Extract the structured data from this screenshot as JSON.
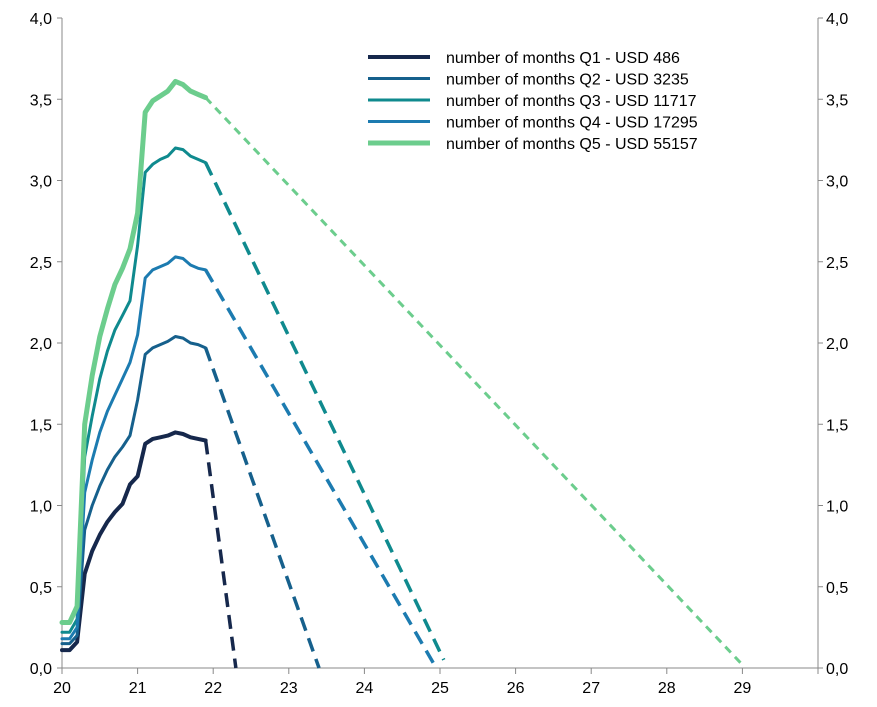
{
  "chart_data": {
    "type": "line",
    "title": "",
    "xlabel": "",
    "ylabel": "",
    "xlim": [
      20,
      30
    ],
    "ylim": [
      0,
      4
    ],
    "x_ticks": [
      "20",
      "21",
      "22",
      "23",
      "24",
      "25",
      "26",
      "27",
      "28",
      "29"
    ],
    "y_ticks": [
      "0,0",
      "0,5",
      "1,0",
      "1,5",
      "2,0",
      "2,5",
      "3,0",
      "3,5",
      "4,0"
    ],
    "secondary_y_ticks": [
      "0,0",
      "0,5",
      "1,0",
      "1,5",
      "2,0",
      "2,5",
      "3,0",
      "3,5",
      "4,0"
    ],
    "grid": false,
    "legend_position": "top-right",
    "x": [
      20.0,
      20.1,
      20.2,
      20.3,
      20.4,
      20.5,
      20.6,
      20.7,
      20.8,
      20.9,
      21.0,
      21.1,
      21.2,
      21.3,
      21.4,
      21.5,
      21.6,
      21.7,
      21.8,
      21.9
    ],
    "series": [
      {
        "name": "number of months Q1 - USD 486",
        "color": "#16284c",
        "width": 4,
        "values": [
          0.11,
          0.11,
          0.16,
          0.58,
          0.72,
          0.82,
          0.9,
          0.96,
          1.01,
          1.13,
          1.18,
          1.38,
          1.41,
          1.42,
          1.43,
          1.45,
          1.44,
          1.42,
          1.41,
          1.4
        ],
        "projection": {
          "x": [
            21.9,
            22.3
          ],
          "y": [
            1.4,
            0.0
          ]
        }
      },
      {
        "name": "number of months Q2 - USD 3235",
        "color": "#16608c",
        "width": 3,
        "values": [
          0.15,
          0.15,
          0.2,
          0.85,
          1.0,
          1.12,
          1.22,
          1.3,
          1.36,
          1.43,
          1.65,
          1.93,
          1.97,
          1.99,
          2.01,
          2.04,
          2.03,
          2.0,
          1.99,
          1.97
        ],
        "projection": {
          "x": [
            21.9,
            23.4
          ],
          "y": [
            1.97,
            0.0
          ]
        }
      },
      {
        "name": "number of months Q3 - USD 11717",
        "color": "#0f8a8e",
        "width": 3,
        "values": [
          0.22,
          0.22,
          0.3,
          1.3,
          1.55,
          1.78,
          1.95,
          2.08,
          2.17,
          2.26,
          2.6,
          3.05,
          3.1,
          3.13,
          3.15,
          3.2,
          3.19,
          3.15,
          3.13,
          3.11
        ],
        "projection": {
          "x": [
            21.9,
            25.05
          ],
          "y": [
            3.11,
            0.05
          ]
        }
      },
      {
        "name": "number of months Q4 - USD 17295",
        "color": "#1c7bb0",
        "width": 3,
        "values": [
          0.18,
          0.18,
          0.25,
          1.08,
          1.28,
          1.45,
          1.58,
          1.68,
          1.78,
          1.88,
          2.05,
          2.4,
          2.45,
          2.47,
          2.49,
          2.53,
          2.52,
          2.48,
          2.46,
          2.45
        ],
        "projection": {
          "x": [
            21.9,
            24.95
          ],
          "y": [
            2.45,
            0.0
          ]
        }
      },
      {
        "name": "number of months Q5 - USD 55157",
        "color": "#6ccd8d",
        "width": 5,
        "values": [
          0.28,
          0.28,
          0.38,
          1.5,
          1.8,
          2.04,
          2.21,
          2.36,
          2.46,
          2.58,
          2.8,
          3.42,
          3.49,
          3.52,
          3.55,
          3.61,
          3.59,
          3.55,
          3.53,
          3.51
        ],
        "projection": {
          "x": [
            21.9,
            29.0
          ],
          "y": [
            3.51,
            0.02
          ]
        }
      }
    ]
  }
}
